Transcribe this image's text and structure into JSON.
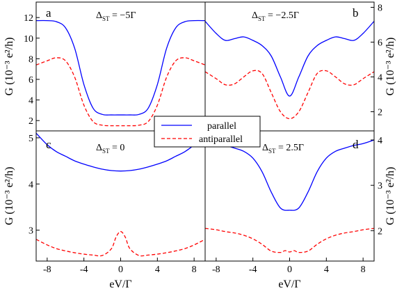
{
  "chart_data": {
    "type": "line",
    "legend": {
      "placement": "center",
      "entries": [
        {
          "label": "parallel",
          "color": "#0000ff",
          "dash": "solid"
        },
        {
          "label": "antiparallel",
          "color": "#ff0000",
          "dash": "dashed"
        }
      ]
    },
    "shared_xlabel": "eV/Γ",
    "x_range": [
      -9.2,
      9.2
    ],
    "x_ticks": [
      -8,
      -4,
      0,
      4,
      8
    ],
    "x_tick_labels": [
      "-8",
      "-4",
      "0",
      "4",
      "8"
    ],
    "panels": [
      {
        "id": "a",
        "letter": "a",
        "annotation": {
          "prefix": "Δ",
          "subscript": "ST",
          "suffix": " = −5Γ"
        },
        "axis_side": "left",
        "ylabel": "G (10⁻³ e²/h)",
        "ylim": [
          1.0,
          13.5
        ],
        "y_ticks": [
          2,
          4,
          6,
          8,
          10,
          12
        ],
        "x": [
          -9.2,
          -8,
          -7,
          -6,
          -5,
          -4,
          -3,
          -2,
          -1,
          0,
          1,
          2,
          3,
          4,
          5,
          6,
          7,
          8,
          9.2
        ],
        "series": [
          {
            "name": "parallel",
            "values": [
              11.7,
              11.7,
              11.6,
              11.0,
              9.0,
              5.5,
              3.2,
              2.6,
              2.55,
              2.55,
              2.55,
              2.6,
              3.2,
              5.5,
              9.0,
              11.0,
              11.6,
              11.7,
              11.7
            ]
          },
          {
            "name": "antiparallel",
            "values": [
              7.4,
              7.8,
              8.1,
              7.8,
              6.2,
              3.5,
              1.9,
              1.55,
              1.5,
              1.5,
              1.5,
              1.55,
              1.9,
              3.5,
              6.2,
              7.8,
              8.1,
              7.8,
              7.4
            ]
          }
        ]
      },
      {
        "id": "b",
        "letter": "b",
        "annotation": {
          "prefix": "Δ",
          "subscript": "ST",
          "suffix": " = −2.5Γ"
        },
        "axis_side": "right",
        "ylabel": "G (10⁻³ e²/h)",
        "ylim": [
          0.9,
          8.3
        ],
        "y_ticks": [
          2,
          4,
          6,
          8
        ],
        "x": [
          -9.2,
          -8,
          -7,
          -6,
          -5,
          -4,
          -3,
          -2,
          -1,
          0,
          1,
          2,
          3,
          4,
          5,
          6,
          7,
          8,
          9.2
        ],
        "series": [
          {
            "name": "parallel",
            "values": [
              7.2,
              6.5,
              6.1,
              6.2,
              6.3,
              6.1,
              5.8,
              5.2,
              4.0,
              2.9,
              4.0,
              5.2,
              5.8,
              6.1,
              6.3,
              6.2,
              6.1,
              6.5,
              7.2
            ]
          },
          {
            "name": "antiparallel",
            "values": [
              4.3,
              3.9,
              3.55,
              3.6,
              4.0,
              4.35,
              4.2,
              3.1,
              2.0,
              1.6,
              2.0,
              3.1,
              4.2,
              4.35,
              4.0,
              3.6,
              3.55,
              3.9,
              4.3
            ]
          }
        ]
      },
      {
        "id": "c",
        "letter": "c",
        "annotation": {
          "prefix": "Δ",
          "subscript": "ST",
          "suffix": " = 0"
        },
        "axis_side": "left",
        "ylabel": "G (10⁻³ e²/h)",
        "ylim": [
          2.33,
          5.15
        ],
        "y_ticks": [
          3,
          4,
          5
        ],
        "x": [
          -9.2,
          -8,
          -7,
          -6,
          -5,
          -4,
          -3,
          -2,
          -1,
          -0.5,
          0,
          0.5,
          1,
          2,
          3,
          4,
          5,
          6,
          7,
          8,
          9.2
        ],
        "series": [
          {
            "name": "parallel",
            "x": [
              -9.2,
              -8,
              -7,
              -6,
              -5,
              -4,
              -3,
              -2,
              -1,
              0,
              1,
              2,
              3,
              4,
              5,
              6,
              7,
              8,
              9.2
            ],
            "values": [
              5.1,
              4.85,
              4.7,
              4.6,
              4.5,
              4.43,
              4.37,
              4.32,
              4.29,
              4.28,
              4.29,
              4.32,
              4.37,
              4.43,
              4.5,
              4.6,
              4.7,
              4.85,
              5.1
            ]
          },
          {
            "name": "antiparallel",
            "x": [
              -9.2,
              -8,
              -7,
              -6,
              -5,
              -4,
              -3,
              -2,
              -1,
              -0.5,
              0,
              0.5,
              1,
              2,
              3,
              4,
              5,
              6,
              7,
              8,
              9.2
            ],
            "values": [
              2.8,
              2.68,
              2.6,
              2.55,
              2.51,
              2.48,
              2.46,
              2.45,
              2.6,
              2.85,
              2.97,
              2.85,
              2.6,
              2.45,
              2.46,
              2.48,
              2.51,
              2.55,
              2.6,
              2.68,
              2.8
            ]
          }
        ]
      },
      {
        "id": "d",
        "letter": "d",
        "annotation": {
          "prefix": "Δ",
          "subscript": "ST",
          "suffix": " = 2.5Γ"
        },
        "axis_side": "right",
        "ylabel": "G (10⁻³ e²/h)",
        "ylim": [
          1.33,
          4.2
        ],
        "y_ticks": [
          2,
          3,
          4
        ],
        "x": [
          -9.2,
          -8,
          -7,
          -6,
          -5,
          -4,
          -3,
          -2,
          -1,
          -0.5,
          0,
          0.5,
          1,
          2,
          3,
          4,
          5,
          6,
          7,
          8,
          9.2
        ],
        "series": [
          {
            "name": "parallel",
            "x": [
              -9.2,
              -8,
              -7,
              -6,
              -5,
              -4,
              -3,
              -2,
              -1,
              0,
              1,
              2,
              3,
              4,
              5,
              6,
              7,
              8,
              9.2
            ],
            "values": [
              4.0,
              3.92,
              3.88,
              3.82,
              3.75,
              3.6,
              3.3,
              2.85,
              2.5,
              2.45,
              2.5,
              2.85,
              3.3,
              3.6,
              3.75,
              3.82,
              3.88,
              3.92,
              4.0
            ]
          },
          {
            "name": "antiparallel",
            "x": [
              -9.2,
              -8,
              -7,
              -6,
              -5,
              -4,
              -3,
              -2,
              -1,
              -0.5,
              0,
              0.5,
              1,
              2,
              3,
              4,
              5,
              6,
              7,
              8,
              9.2
            ],
            "values": [
              2.05,
              2.02,
              1.98,
              1.95,
              1.9,
              1.82,
              1.7,
              1.55,
              1.52,
              1.56,
              1.53,
              1.56,
              1.52,
              1.55,
              1.7,
              1.82,
              1.9,
              1.95,
              1.98,
              2.02,
              2.05
            ]
          }
        ]
      }
    ]
  }
}
